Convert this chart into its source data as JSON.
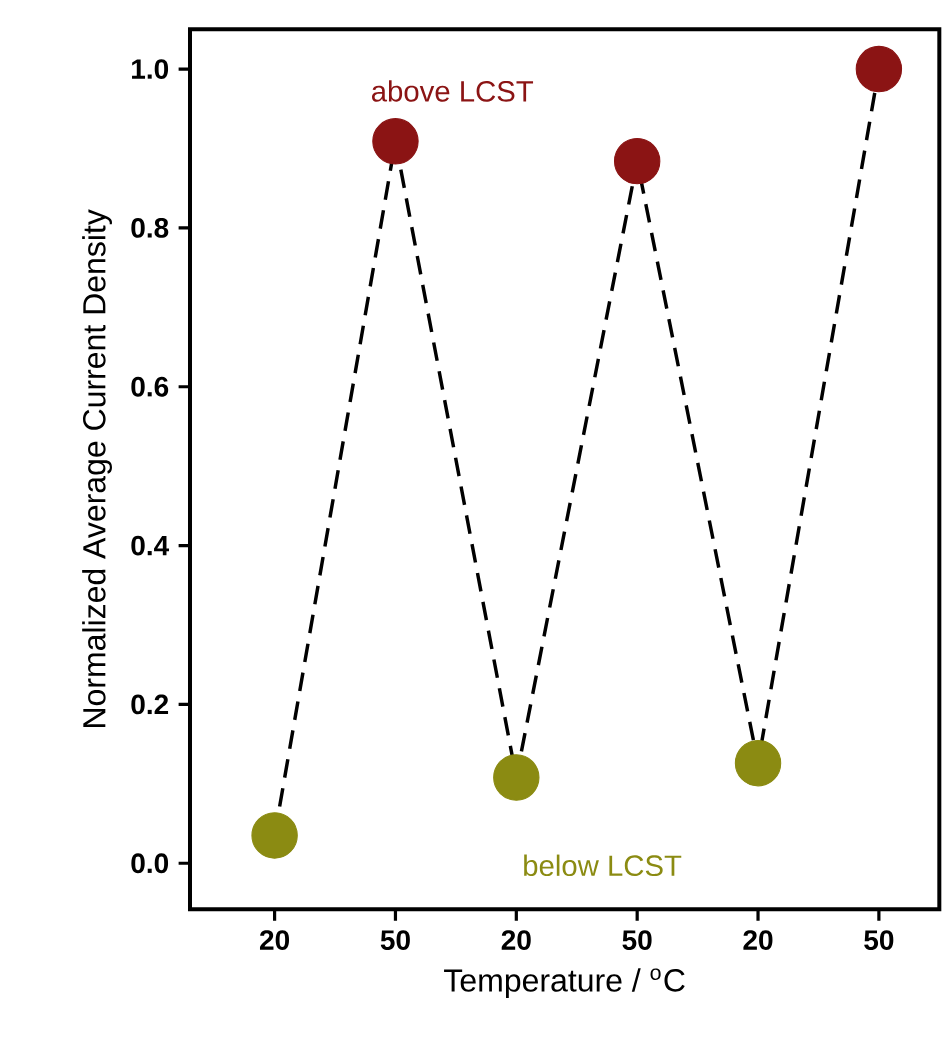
{
  "chart_data": {
    "type": "line",
    "xlabel": "Temperature / $^{o}$C",
    "ylabel": "Normalized Average Current Density",
    "categories": [
      "20",
      "50",
      "20",
      "50",
      "20",
      "50"
    ],
    "series": [
      {
        "color": "#000000",
        "line_style": "dashed",
        "marker": "circle",
        "colors": [
          "#8b8b12",
          "#8b1414",
          "#8b8b12",
          "#8b1414",
          "#8b8b12",
          "#8b1414"
        ],
        "values": [
          0.035,
          0.909,
          0.108,
          0.884,
          0.126,
          1.0
        ]
      }
    ],
    "ylim": [
      -0.058,
      1.05
    ],
    "yticks": [
      {
        "value": 0,
        "label": "0.0"
      },
      {
        "value": 0.2,
        "label": "0.2"
      },
      {
        "value": 0.4,
        "label": "0.4"
      },
      {
        "value": 0.6,
        "label": "0.6"
      },
      {
        "value": 0.8,
        "label": "0.8"
      },
      {
        "value": 1.0,
        "label": "1.0"
      }
    ],
    "grid": false,
    "annotations": [
      "above LCST",
      "below LCST"
    ]
  }
}
